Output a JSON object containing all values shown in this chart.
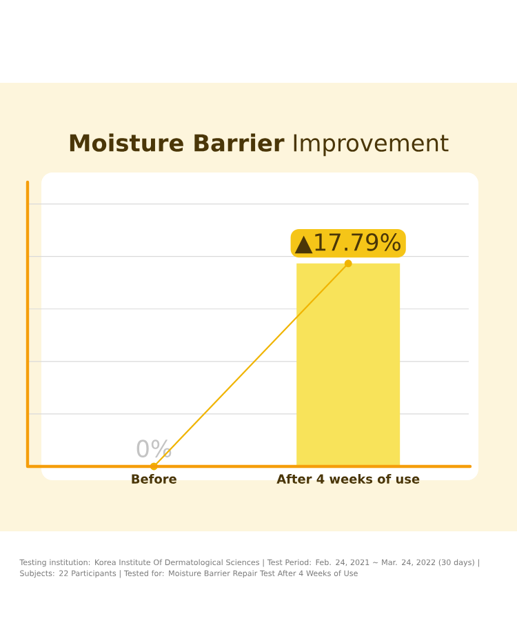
{
  "chart_data": {
    "type": "bar",
    "title": "**Moisture Barrier** Improvement",
    "categories": [
      "Before",
      "After 4 weeks of use"
    ],
    "series": [
      {
        "color": "#f8e35a",
        "values": [
          0,
          17.79
        ],
        "value_labels": [
          "0%",
          "▲17.79%"
        ]
      },
      {
        "type": "line",
        "color": "#f0b400",
        "values": [
          0,
          17.79
        ],
        "marker": "circle"
      }
    ],
    "ylim": [
      0,
      26
    ],
    "yticks": [
      {
        "value": 4.6,
        "label": null
      },
      {
        "value": 9.2,
        "label": null
      },
      {
        "value": 13.8,
        "label": null
      },
      {
        "value": 18.4,
        "label": null
      },
      {
        "value": 23.0,
        "label": null
      }
    ],
    "grid": "y",
    "tick_labels": "x",
    "annotations": [
      "Testing institution: Korea Institute Of Dermatological Sciences | Test Period: Feb. 24, 2021 ~ Mar. 24, 2022 (30 days) | Subjects: 22 Participants | Tested for: Moisture Barrier Repair Test After 4 Weeks of Use"
    ]
  }
}
